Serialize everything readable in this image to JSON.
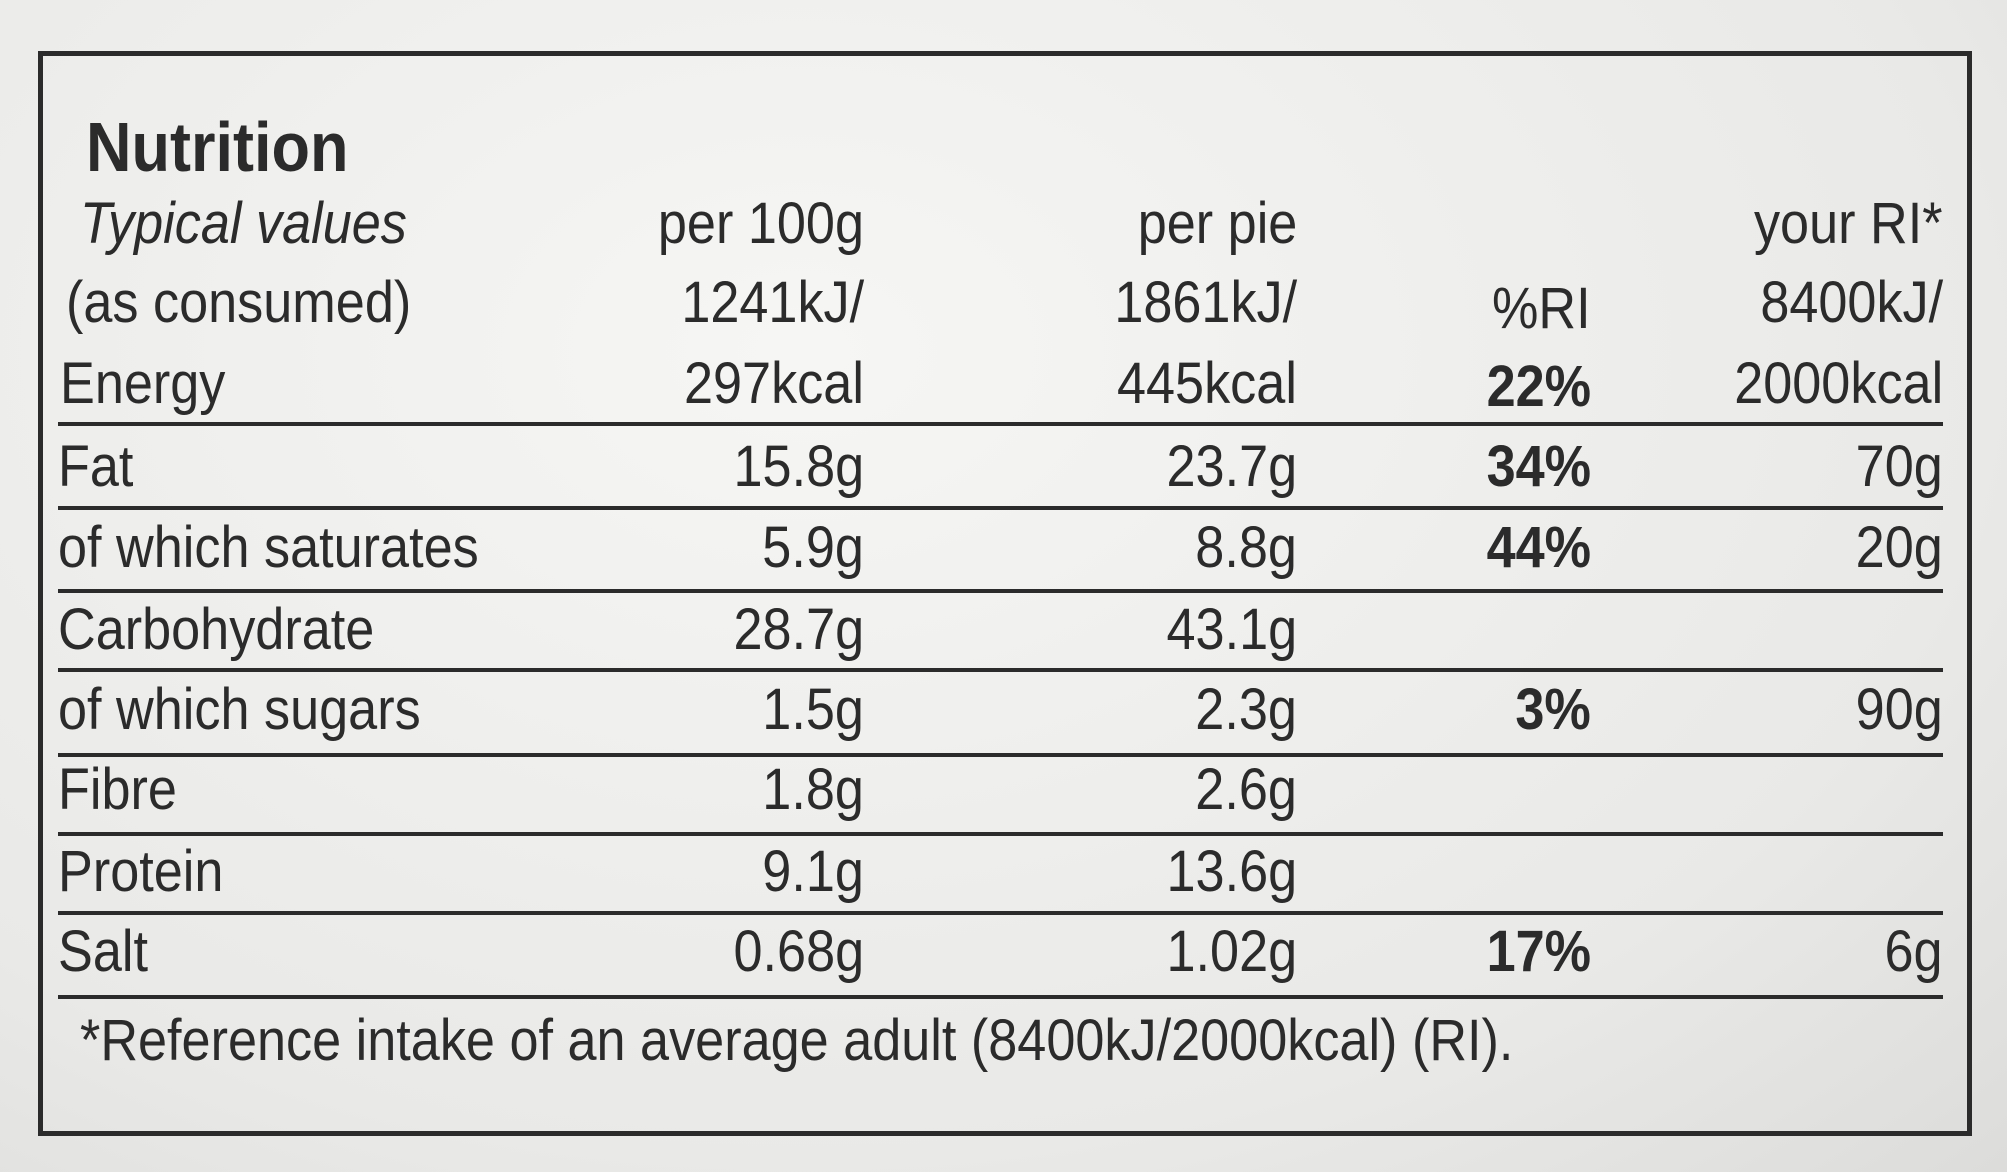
{
  "title": "Nutrition",
  "header": {
    "label_lines": [
      "Typical values",
      "(as consumed)"
    ],
    "per_100g": "per 100g",
    "per_pie": "per pie",
    "ri_percent": "%RI",
    "your_ri": "your RI*"
  },
  "energy": {
    "label": "Energy",
    "per_100g": [
      "1241kJ/",
      "297kcal"
    ],
    "per_pie": [
      "1861kJ/",
      "445kcal"
    ],
    "ri_percent": "22%",
    "your_ri": [
      "8400kJ/",
      "2000kcal"
    ]
  },
  "rows": [
    {
      "label": "Fat",
      "per_100g": "15.8g",
      "per_pie": "23.7g",
      "ri_percent": "34%",
      "your_ri": "70g"
    },
    {
      "label": "of which saturates",
      "per_100g": "5.9g",
      "per_pie": "8.8g",
      "ri_percent": "44%",
      "your_ri": "20g"
    },
    {
      "label": "Carbohydrate",
      "per_100g": "28.7g",
      "per_pie": "43.1g"
    },
    {
      "label": "of which sugars",
      "per_100g": "1.5g",
      "per_pie": "2.3g",
      "ri_percent": "3%",
      "your_ri": "90g"
    },
    {
      "label": "Fibre",
      "per_100g": "1.8g",
      "per_pie": "2.6g"
    },
    {
      "label": "Protein",
      "per_100g": "9.1g",
      "per_pie": "13.6g"
    },
    {
      "label": "Salt",
      "per_100g": "0.68g",
      "per_pie": "1.02g",
      "ri_percent": "17%",
      "your_ri": "6g"
    }
  ],
  "footnote": "*Reference intake of an average adult (8400kJ/2000kcal) (RI)."
}
